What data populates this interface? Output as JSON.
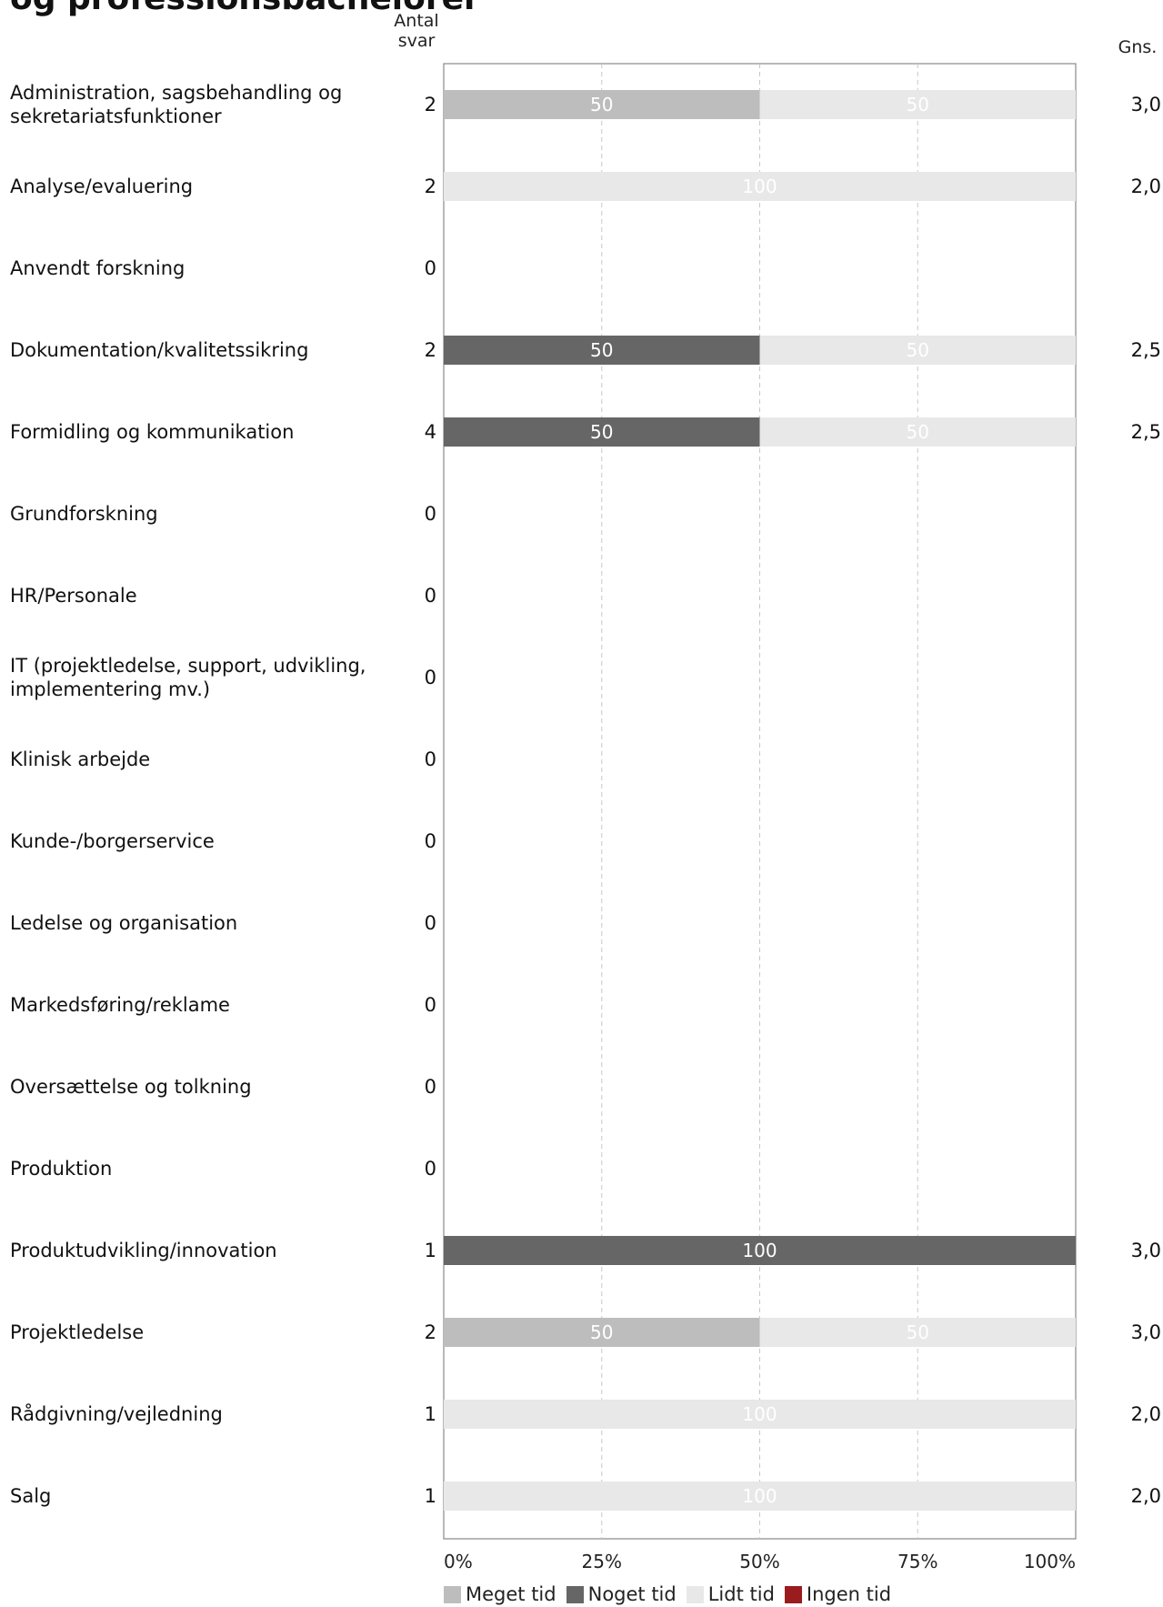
{
  "title": "og professionsbachelorer",
  "headers": {
    "count_line1": "Antal",
    "count_line2": "svar",
    "avg": "Gns."
  },
  "colors": {
    "Meget tid": "#bdbdbd",
    "Noget tid": "#666666",
    "Lidt tid": "#e8e8e8",
    "Ingen tid": "#9b1c1f"
  },
  "chart_data": {
    "type": "bar",
    "orientation": "horizontal-stacked-100",
    "xlim": [
      0,
      100
    ],
    "x_ticks": [
      "0%",
      "25%",
      "50%",
      "75%",
      "100%"
    ],
    "grid": true,
    "legend_position": "bottom",
    "series_names": [
      "Meget tid",
      "Noget tid",
      "Lidt tid",
      "Ingen tid"
    ],
    "rows": [
      {
        "category": "Administration, sagsbehandling og sekretariatsfunktioner",
        "count": "2",
        "avg": "3,0",
        "values": [
          50,
          0,
          50,
          0
        ]
      },
      {
        "category": "Analyse/evaluering",
        "count": "2",
        "avg": "2,0",
        "values": [
          0,
          0,
          100,
          0
        ]
      },
      {
        "category": "Anvendt forskning",
        "count": "0",
        "avg": "",
        "values": [
          0,
          0,
          0,
          0
        ]
      },
      {
        "category": "Dokumentation/kvalitetssikring",
        "count": "2",
        "avg": "2,5",
        "values": [
          0,
          50,
          50,
          0
        ]
      },
      {
        "category": "Formidling og kommunikation",
        "count": "4",
        "avg": "2,5",
        "values": [
          0,
          50,
          50,
          0
        ]
      },
      {
        "category": "Grundforskning",
        "count": "0",
        "avg": "",
        "values": [
          0,
          0,
          0,
          0
        ]
      },
      {
        "category": "HR/Personale",
        "count": "0",
        "avg": "",
        "values": [
          0,
          0,
          0,
          0
        ]
      },
      {
        "category": "IT (projektledelse, support, udvikling, implementering mv.)",
        "count": "0",
        "avg": "",
        "values": [
          0,
          0,
          0,
          0
        ]
      },
      {
        "category": "Klinisk arbejde",
        "count": "0",
        "avg": "",
        "values": [
          0,
          0,
          0,
          0
        ]
      },
      {
        "category": "Kunde-/borgerservice",
        "count": "0",
        "avg": "",
        "values": [
          0,
          0,
          0,
          0
        ]
      },
      {
        "category": "Ledelse og organisation",
        "count": "0",
        "avg": "",
        "values": [
          0,
          0,
          0,
          0
        ]
      },
      {
        "category": "Markedsføring/reklame",
        "count": "0",
        "avg": "",
        "values": [
          0,
          0,
          0,
          0
        ]
      },
      {
        "category": "Oversættelse og tolkning",
        "count": "0",
        "avg": "",
        "values": [
          0,
          0,
          0,
          0
        ]
      },
      {
        "category": "Produktion",
        "count": "0",
        "avg": "",
        "values": [
          0,
          0,
          0,
          0
        ]
      },
      {
        "category": "Produktudvikling/innovation",
        "count": "1",
        "avg": "3,0",
        "values": [
          0,
          100,
          0,
          0
        ]
      },
      {
        "category": "Projektledelse",
        "count": "2",
        "avg": "3,0",
        "values": [
          50,
          0,
          50,
          0
        ]
      },
      {
        "category": "Rådgivning/vejledning",
        "count": "1",
        "avg": "2,0",
        "values": [
          0,
          0,
          100,
          0
        ]
      },
      {
        "category": "Salg",
        "count": "1",
        "avg": "2,0",
        "values": [
          0,
          0,
          100,
          0
        ]
      }
    ]
  }
}
